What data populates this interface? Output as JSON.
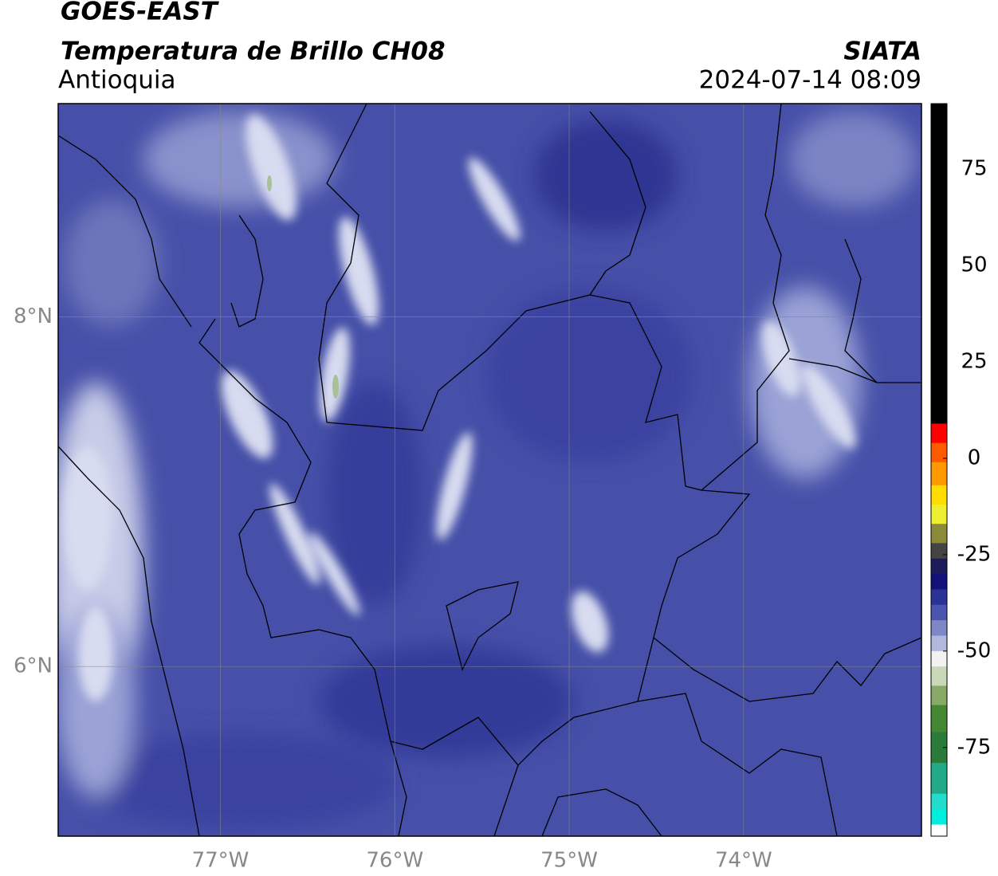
{
  "header": {
    "satellite": "GOES-EAST",
    "title": "Temperatura de Brillo CH08",
    "region": "Antioquia",
    "source": "SIATA",
    "datetime": "2024-07-14 08:09"
  },
  "map": {
    "xlim": [
      -77.93,
      -72.98
    ],
    "ylim": [
      5.03,
      9.22
    ],
    "xticks": [
      {
        "value": -77,
        "label": "77°W"
      },
      {
        "value": -76,
        "label": "76°W"
      },
      {
        "value": -75,
        "label": "75°W"
      },
      {
        "value": -74,
        "label": "74°W"
      }
    ],
    "yticks": [
      {
        "value": 6,
        "label": "6°N"
      },
      {
        "value": 8,
        "label": "8°N"
      }
    ],
    "grid": true
  },
  "colorbar": {
    "lim": [
      -98,
      92
    ],
    "ticks": [
      -75,
      -50,
      -25,
      0,
      25,
      50,
      75
    ],
    "stops": [
      {
        "value": 92,
        "color": "#000000"
      },
      {
        "value": 9,
        "color": "#ff0000"
      },
      {
        "value": 4,
        "color": "#ff5a00"
      },
      {
        "value": -1,
        "color": "#ff9900"
      },
      {
        "value": -7,
        "color": "#ffdd00"
      },
      {
        "value": -12,
        "color": "#eeee33"
      },
      {
        "value": -17,
        "color": "#8a8a3a"
      },
      {
        "value": -22,
        "color": "#444444"
      },
      {
        "value": -26,
        "color": "#1c1c5c"
      },
      {
        "value": -30,
        "color": "#12127a"
      },
      {
        "value": -34,
        "color": "#2a3296"
      },
      {
        "value": -38,
        "color": "#4a55b0"
      },
      {
        "value": -42,
        "color": "#7f88c6"
      },
      {
        "value": -46,
        "color": "#b0b8de"
      },
      {
        "value": -50,
        "color": "#f2f2f2"
      },
      {
        "value": -54,
        "color": "#c8d8b8"
      },
      {
        "value": -59,
        "color": "#88aa66"
      },
      {
        "value": -64,
        "color": "#448833"
      },
      {
        "value": -71,
        "color": "#2a7a3a"
      },
      {
        "value": -79,
        "color": "#22aa88"
      },
      {
        "value": -87,
        "color": "#22ddcc"
      },
      {
        "value": -91,
        "color": "#00eedd"
      },
      {
        "value": -95,
        "color": "#ffffff"
      },
      {
        "value": -98,
        "color": "#ffffff"
      }
    ]
  }
}
